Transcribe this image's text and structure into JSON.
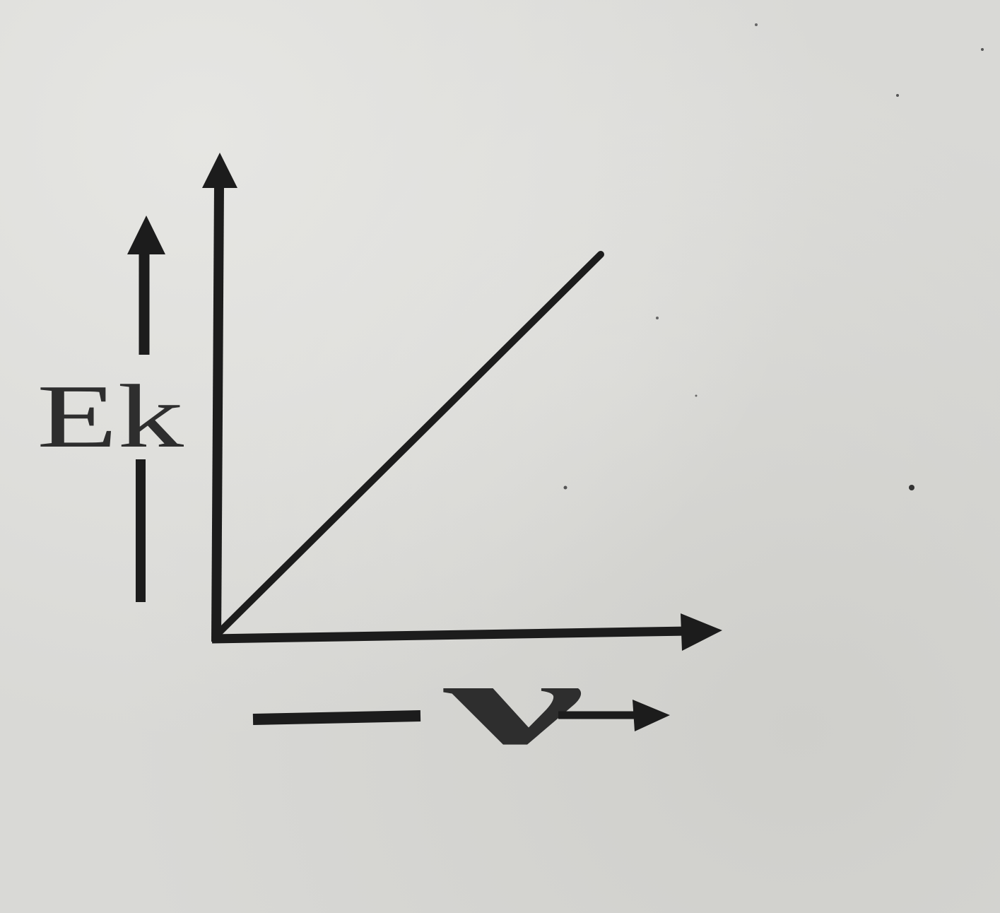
{
  "chart_data": {
    "type": "line",
    "title": "",
    "xlabel": "ν",
    "ylabel": "Ek",
    "x": [
      0,
      1
    ],
    "series": [
      {
        "values": [
          0,
          1
        ]
      }
    ],
    "xlim": [
      0,
      1.3
    ],
    "ylim": [
      0,
      1.3
    ],
    "grid": false,
    "legend": "none"
  },
  "colors": {
    "ink": "#1c1c1c",
    "paper": "#d9d9d6"
  }
}
